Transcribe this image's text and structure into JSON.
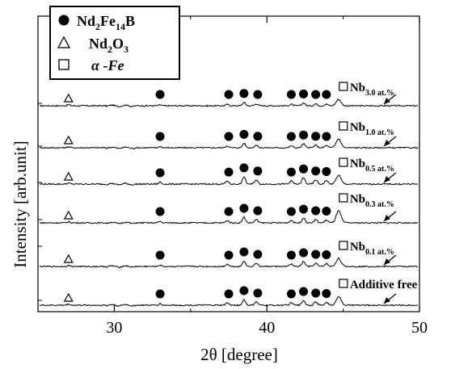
{
  "chart_data": {
    "type": "line",
    "xlabel": "2θ [degree]",
    "ylabel": "Intensity [arb.unit]",
    "xlim": [
      25,
      50
    ],
    "x_ticks": [
      "30",
      "40",
      "50"
    ],
    "y_ticks": [],
    "grid": false,
    "legend": {
      "position": "top-left",
      "entries": [
        {
          "marker": "filled-circle",
          "text": "Nd",
          "sub1": "2",
          "text2": "Fe",
          "sub2": "14",
          "text3": "B"
        },
        {
          "marker": "open-triangle",
          "text": "Nd",
          "sub1": "2",
          "text2": "O",
          "sub2": "3",
          "text3": ""
        },
        {
          "marker": "open-square",
          "text": "α -Fe",
          "sub1": "",
          "text2": "",
          "sub2": "",
          "text3": ""
        }
      ]
    },
    "peaks": [
      {
        "x": 27.0,
        "height": 1.0,
        "width": 0.15
      },
      {
        "x": 33.0,
        "height": 2.0,
        "width": 0.12
      },
      {
        "x": 37.4,
        "height": 3.0,
        "width": 0.14
      },
      {
        "x": 38.5,
        "height": 7.0,
        "width": 0.14
      },
      {
        "x": 39.3,
        "height": 4.0,
        "width": 0.15
      },
      {
        "x": 41.6,
        "height": 3.0,
        "width": 0.15
      },
      {
        "x": 42.4,
        "height": 6.0,
        "width": 0.15
      },
      {
        "x": 43.2,
        "height": 4.0,
        "width": 0.15
      },
      {
        "x": 43.9,
        "height": 3.5,
        "width": 0.15
      },
      {
        "x": 44.7,
        "height": 6.0,
        "width": 0.22
      }
    ],
    "series": [
      {
        "name": "Nb",
        "sub": "3.0 at.%",
        "peak_scale": 0.6,
        "fe_peak": 8,
        "nd2o3_peak": 1.2
      },
      {
        "name": "Nb",
        "sub": "1.0 at.%",
        "peak_scale": 0.8,
        "fe_peak": 11,
        "nd2o3_peak": 1.2
      },
      {
        "name": "Nb",
        "sub": "0.5 at.%",
        "peak_scale": 1.3,
        "fe_peak": 11,
        "nd2o3_peak": 1.2
      },
      {
        "name": "Nb",
        "sub": "0.3 at.%",
        "peak_scale": 1.0,
        "fe_peak": 15,
        "nd2o3_peak": 1.2
      },
      {
        "name": "Nb",
        "sub": "0.1 at.%",
        "peak_scale": 1.0,
        "fe_peak": 10,
        "nd2o3_peak": 1.2
      },
      {
        "name": "Additive free",
        "sub": "",
        "peak_scale": 1.0,
        "fe_peak": 11,
        "nd2o3_peak": 1.2
      }
    ],
    "circle_positions": [
      33.0,
      37.5,
      38.5,
      39.4,
      41.6,
      42.4,
      43.2,
      43.9
    ],
    "triangle_position": 27.0,
    "square_position": 44.8
  }
}
